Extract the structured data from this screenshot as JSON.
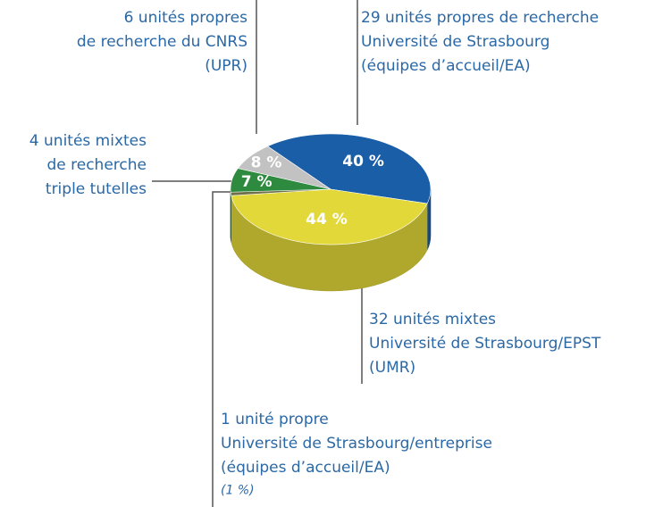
{
  "chart_data": {
    "type": "pie",
    "categories": [
      [
        "29 unités propres de recherche",
        "Université de Strasbourg",
        "(équipes d’accueil/EA)"
      ],
      [
        "32 unités mixtes",
        "Université de Strasbourg/EPST",
        "(UMR)"
      ],
      [
        "1 unité propre",
        "Université de Strasbourg/entreprise",
        "(équipes d’accueil/EA)"
      ],
      [
        "4 unités mixtes",
        "de recherche",
        "triple tutelles"
      ],
      [
        "6 unités propres",
        "de recherche du CNRS",
        "(UPR)"
      ]
    ],
    "values": [
      40,
      44,
      1,
      7,
      8
    ],
    "value_labels": [
      "40 %",
      "44 %",
      "(1 %)",
      "7 %",
      "8 %"
    ],
    "colors": [
      "#1a5ea8",
      "#e2d83a",
      "#6f6f4a",
      "#2e8a3e",
      "#c2c2c2"
    ]
  }
}
